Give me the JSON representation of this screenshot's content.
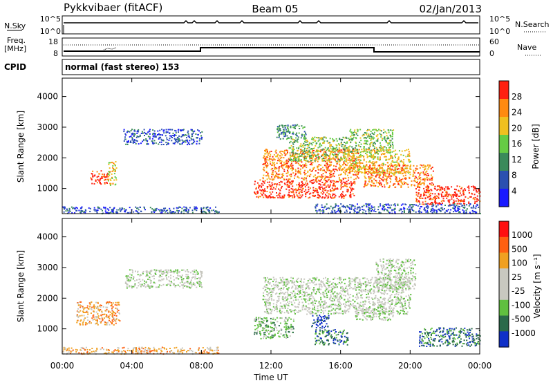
{
  "header": {
    "station": "Pykkvibaer (fitACF)",
    "beam": "Beam 05",
    "date": "02/Jan/2013"
  },
  "status_panel": {
    "nsky_label": "N.Sky",
    "nsky_ticks": [
      "10^5",
      "10^0"
    ],
    "nsearch_label": "N.Search",
    "nsearch_ticks": [
      "10^5",
      "10^0"
    ],
    "freq_label": "Freq.",
    "freq_unit": "[MHz]",
    "freq_ticks": [
      "18",
      "8"
    ],
    "nave_label": "Nave",
    "nave_ticks": [
      "60",
      "0"
    ],
    "cpid_label": "CPID",
    "cpid_text": "normal (fast stereo) 153"
  },
  "chart_data": [
    {
      "type": "heatmap",
      "name": "power-panel",
      "ylabel": "Slant Range [km]",
      "ylim": [
        180,
        4600
      ],
      "yticks": [
        1000,
        2000,
        3000,
        4000
      ],
      "xlim_hours": [
        0,
        24
      ],
      "colorbar": {
        "label": "Power [dB]",
        "ticks": [
          "4",
          "8",
          "12",
          "16",
          "20",
          "24",
          "28"
        ],
        "colors": [
          "#1a1aff",
          "#2b50b0",
          "#3a8a5a",
          "#66cc44",
          "#f0c020",
          "#ff8a10",
          "#ff2010"
        ]
      },
      "regions": [
        {
          "t": [
            0.0,
            9.0
          ],
          "r": [
            200,
            420
          ],
          "level": 1
        },
        {
          "t": [
            1.6,
            2.6
          ],
          "r": [
            1150,
            1600
          ],
          "level": 6
        },
        {
          "t": [
            2.6,
            3.1
          ],
          "r": [
            1100,
            1900
          ],
          "level": 4
        },
        {
          "t": [
            3.5,
            8.0
          ],
          "r": [
            2450,
            2950
          ],
          "level": 1
        },
        {
          "t": [
            11.0,
            16.8
          ],
          "r": [
            700,
            1300
          ],
          "level": 6
        },
        {
          "t": [
            11.5,
            17.0
          ],
          "r": [
            1300,
            2300
          ],
          "level": 5
        },
        {
          "t": [
            13.0,
            16.5
          ],
          "r": [
            1900,
            2700
          ],
          "level": 3
        },
        {
          "t": [
            12.3,
            14.0
          ],
          "r": [
            2600,
            3100
          ],
          "level": 2
        },
        {
          "t": [
            16.3,
            20.0
          ],
          "r": [
            1500,
            2300
          ],
          "level": 4
        },
        {
          "t": [
            16.5,
            19.0
          ],
          "r": [
            2200,
            2950
          ],
          "level": 3
        },
        {
          "t": [
            17.3,
            21.3
          ],
          "r": [
            1050,
            1800
          ],
          "level": 5
        },
        {
          "t": [
            20.3,
            24.0
          ],
          "r": [
            500,
            1100
          ],
          "level": 6
        },
        {
          "t": [
            14.5,
            24.0
          ],
          "r": [
            200,
            520
          ],
          "level": 1
        }
      ]
    },
    {
      "type": "heatmap",
      "name": "velocity-panel",
      "ylabel": "Slant Range [km]",
      "ylim": [
        180,
        4600
      ],
      "yticks": [
        1000,
        2000,
        3000,
        4000
      ],
      "xlim_hours": [
        0,
        24
      ],
      "xticks": [
        "00:00",
        "04:00",
        "08:00",
        "12:00",
        "16:00",
        "20:00",
        "00:00"
      ],
      "xlabel": "Time UT",
      "colorbar": {
        "label": "Velocity [m s⁻¹]",
        "ticks": [
          "1000",
          "500",
          "100",
          "25",
          "-25",
          "-100",
          "-500",
          "-1000"
        ],
        "colors": [
          "#1030c8",
          "#2a6a4a",
          "#60c040",
          "#c8c8c0",
          "#c8c8c0",
          "#f0a020",
          "#ff6010",
          "#ff1010"
        ]
      },
      "regions": [
        {
          "t": [
            0.0,
            9.0
          ],
          "r": [
            200,
            420
          ],
          "level": 5
        },
        {
          "t": [
            0.8,
            3.3
          ],
          "r": [
            1150,
            1900
          ],
          "level": 5
        },
        {
          "t": [
            3.6,
            8.0
          ],
          "r": [
            2350,
            2950
          ],
          "level": 3
        },
        {
          "t": [
            11.0,
            13.3
          ],
          "r": [
            700,
            1400
          ],
          "level": 2
        },
        {
          "t": [
            11.5,
            20.0
          ],
          "r": [
            1500,
            2700
          ],
          "level": 3
        },
        {
          "t": [
            14.3,
            15.3
          ],
          "r": [
            1050,
            1500
          ],
          "level": 0
        },
        {
          "t": [
            14.5,
            16.4
          ],
          "r": [
            500,
            1000
          ],
          "level": 1
        },
        {
          "t": [
            16.8,
            19.0
          ],
          "r": [
            1300,
            1700
          ],
          "level": 3
        },
        {
          "t": [
            18.0,
            20.3
          ],
          "r": [
            2300,
            3300
          ],
          "level": 3
        },
        {
          "t": [
            20.5,
            24.0
          ],
          "r": [
            450,
            1050
          ],
          "level": 1
        }
      ]
    }
  ]
}
